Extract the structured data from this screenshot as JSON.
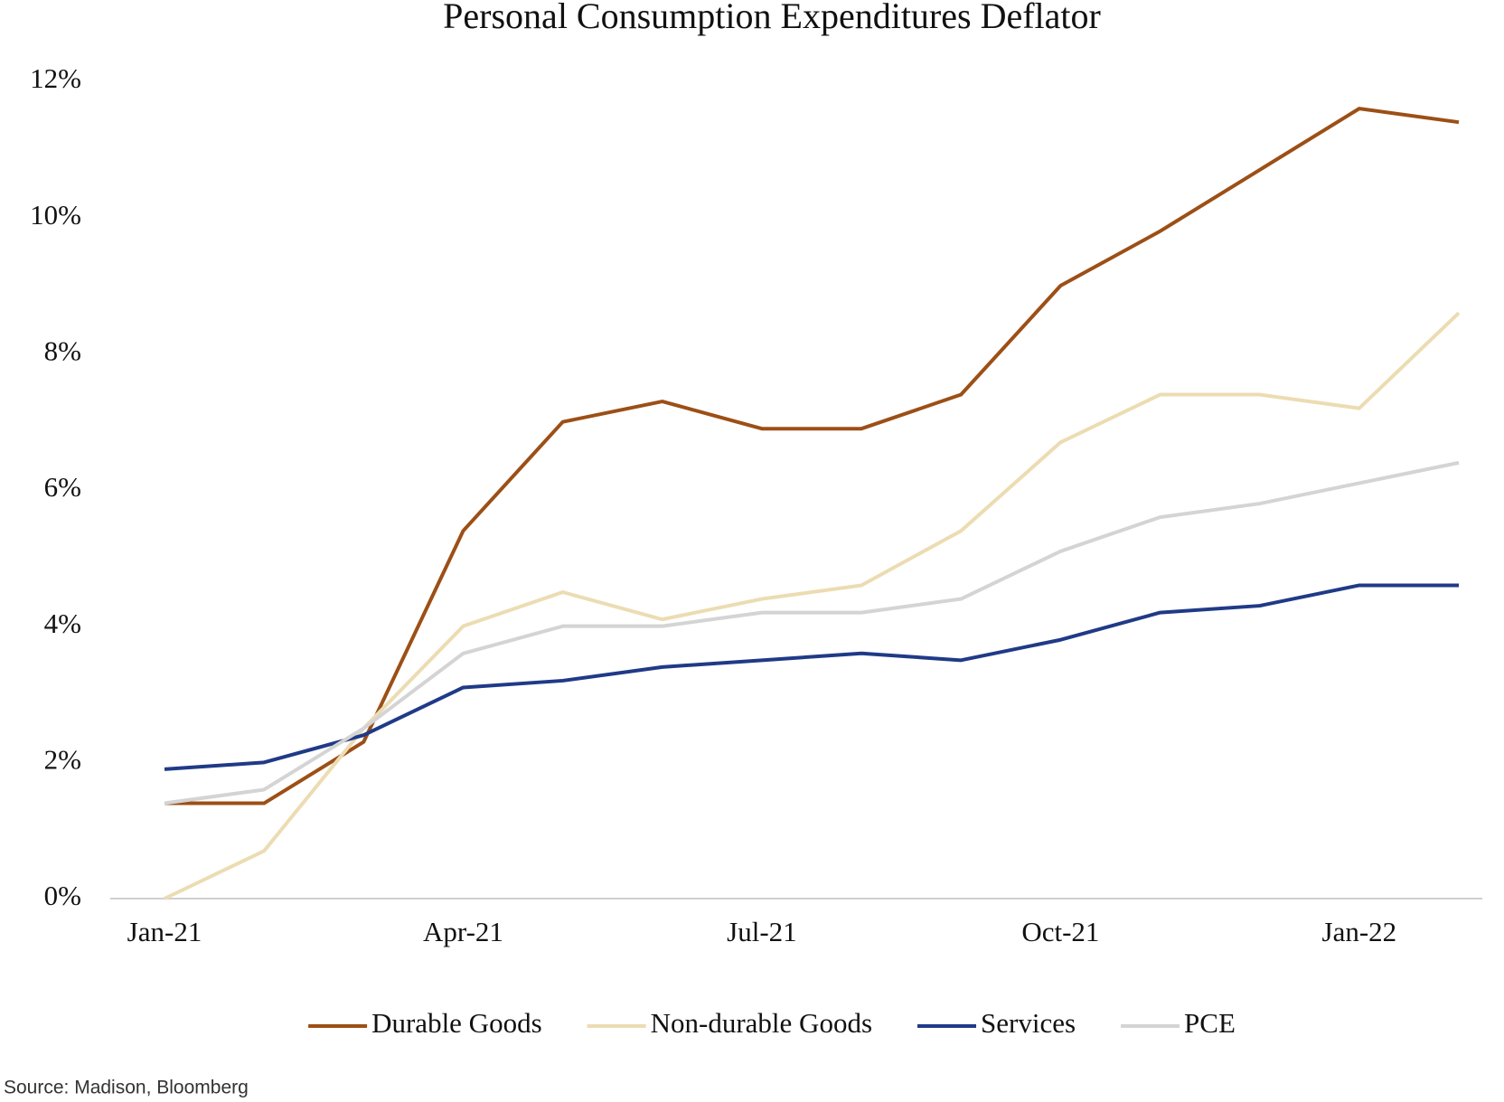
{
  "chart_data": {
    "type": "line",
    "title": "Personal Consumption Expenditures Deflator",
    "source": "Source: Madison, Bloomberg",
    "categories": [
      "Jan-21",
      null,
      null,
      "Apr-21",
      null,
      null,
      "Jul-21",
      null,
      null,
      "Oct-21",
      null,
      null,
      "Jan-22",
      null
    ],
    "ylim": [
      0,
      12
    ],
    "yticks": [
      {
        "value": 0,
        "label": "0%"
      },
      {
        "value": 2,
        "label": "2%"
      },
      {
        "value": 4,
        "label": "4%"
      },
      {
        "value": 6,
        "label": "6%"
      },
      {
        "value": 8,
        "label": "8%"
      },
      {
        "value": 10,
        "label": "10%"
      },
      {
        "value": 12,
        "label": "12%"
      }
    ],
    "grid": false,
    "legend": "bottom",
    "series": [
      {
        "name": "Durable Goods",
        "color": "#9c4f16",
        "values": [
          1.4,
          1.4,
          2.3,
          5.4,
          7.0,
          7.3,
          6.9,
          6.9,
          7.4,
          9.0,
          9.8,
          10.7,
          11.6,
          11.4
        ]
      },
      {
        "name": "Non-durable Goods",
        "color": "#ecdcb2",
        "values": [
          0.0,
          0.7,
          2.5,
          4.0,
          4.5,
          4.1,
          4.4,
          4.6,
          5.4,
          6.7,
          7.4,
          7.4,
          7.2,
          8.6
        ]
      },
      {
        "name": "Services",
        "color": "#1f3a87",
        "values": [
          1.9,
          2.0,
          2.4,
          3.1,
          3.2,
          3.4,
          3.5,
          3.6,
          3.5,
          3.8,
          4.2,
          4.3,
          4.6,
          4.6
        ]
      },
      {
        "name": "PCE",
        "color": "#d4d4d4",
        "values": [
          1.4,
          1.6,
          2.5,
          3.6,
          4.0,
          4.0,
          4.2,
          4.2,
          4.4,
          5.1,
          5.6,
          5.8,
          6.1,
          6.4
        ]
      }
    ]
  }
}
